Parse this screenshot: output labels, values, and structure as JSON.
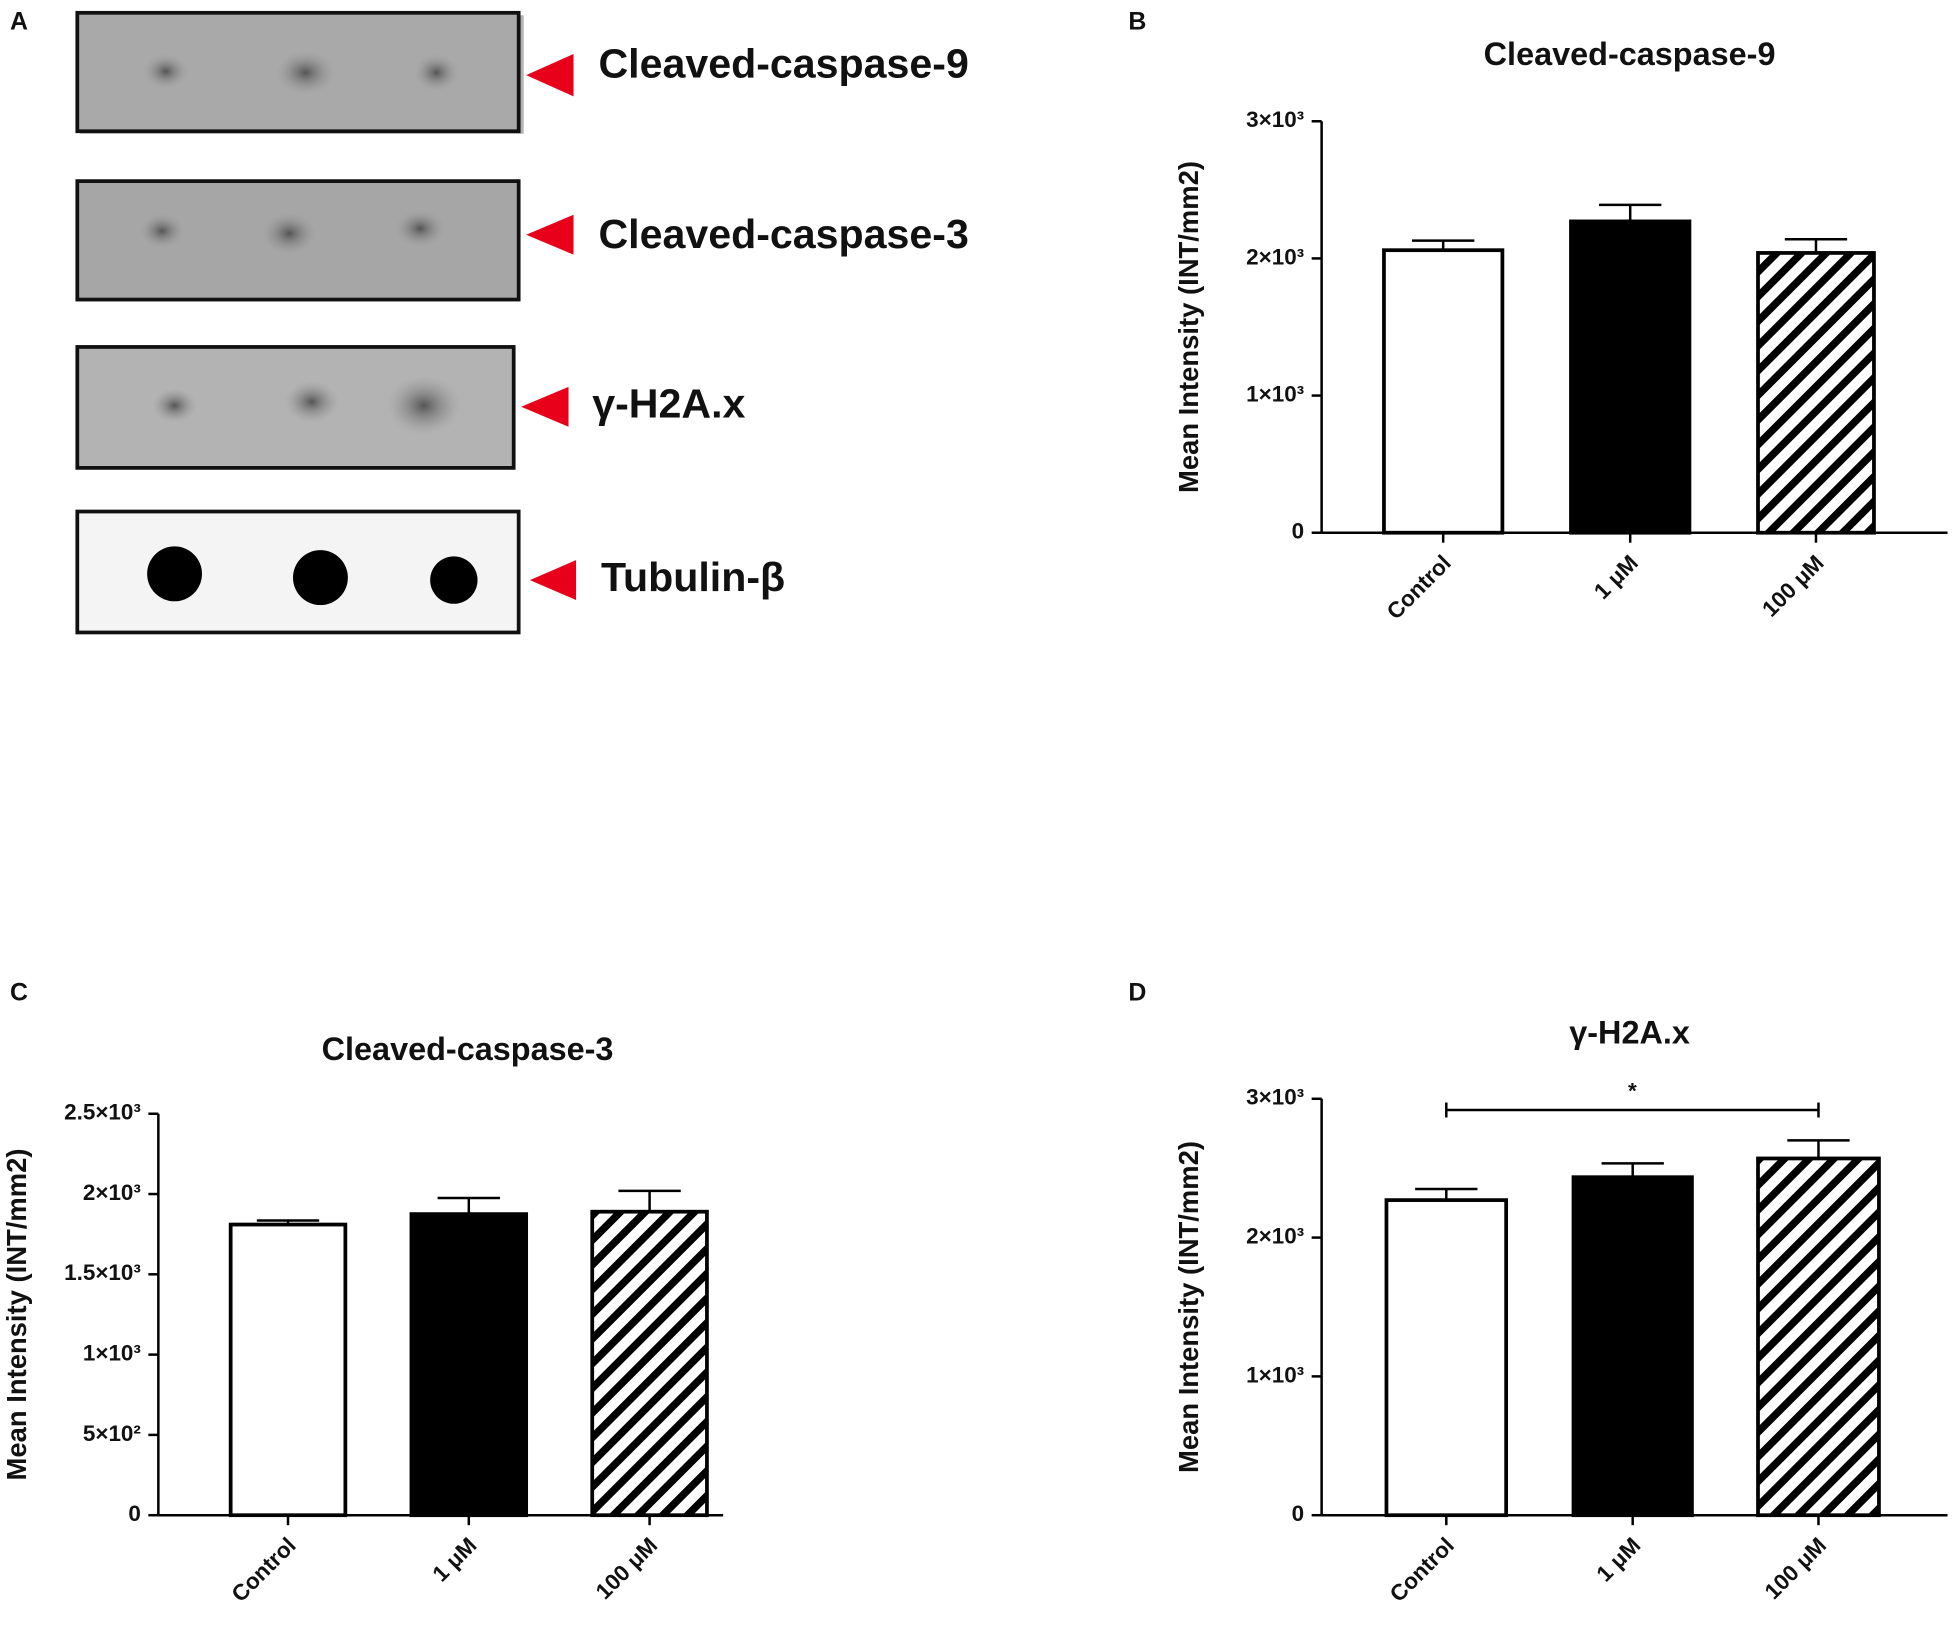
{
  "blot": {
    "panel": "A",
    "labels": [
      "Cleaved-caspase-9",
      "Cleaved-caspase-3",
      "γ-H2A.x",
      "Tubulin-β"
    ]
  },
  "chart_data": [
    {
      "type": "bar",
      "panel": "B",
      "title": "Cleaved-caspase-9",
      "y_label": "Mean Intensity (INT/mm2)",
      "categories": [
        "Control",
        "1 μM",
        "100 μM"
      ],
      "values": [
        2060,
        2270,
        2040
      ],
      "errors": [
        70,
        120,
        100
      ],
      "fills": [
        "white",
        "black",
        "hatched"
      ],
      "ylim": [
        0,
        3000
      ],
      "yticks": [
        0,
        {
          "value": 1000,
          "label": "1×10³"
        },
        {
          "value": 2000,
          "label": "2×10³"
        },
        {
          "value": 3000,
          "label": "3×10³"
        }
      ]
    },
    {
      "type": "bar",
      "panel": "C",
      "title": "Cleaved-caspase-3",
      "y_label": "Mean Intensity (INT/mm2)",
      "categories": [
        "Control",
        "1 μM",
        "100 μM"
      ],
      "values": [
        1810,
        1875,
        1890
      ],
      "errors": [
        25,
        100,
        130
      ],
      "fills": [
        "white",
        "black",
        "hatched"
      ],
      "ylim": [
        0,
        2500
      ],
      "yticks": [
        0,
        {
          "value": 500,
          "label": "5×10²"
        },
        {
          "value": 1000,
          "label": "1×10³"
        },
        {
          "value": 1500,
          "label": "1.5×10³"
        },
        {
          "value": 2000,
          "label": "2×10³"
        },
        {
          "value": 2500,
          "label": "2.5×10³"
        }
      ]
    },
    {
      "type": "bar",
      "panel": "D",
      "title": "γ-H2A.x",
      "y_label": "Mean Intensity (INT/mm2)",
      "categories": [
        "Control",
        "1 μM",
        "100 μM"
      ],
      "values": [
        2270,
        2435,
        2570
      ],
      "errors": [
        80,
        100,
        130
      ],
      "fills": [
        "white",
        "black",
        "hatched"
      ],
      "ylim": [
        0,
        3000
      ],
      "yticks": [
        0,
        {
          "value": 1000,
          "label": "1×10³"
        },
        {
          "value": 2000,
          "label": "2×10³"
        },
        {
          "value": 3000,
          "label": "3×10³"
        }
      ],
      "significance": {
        "from": 0,
        "to": 2,
        "label": "*"
      }
    }
  ]
}
